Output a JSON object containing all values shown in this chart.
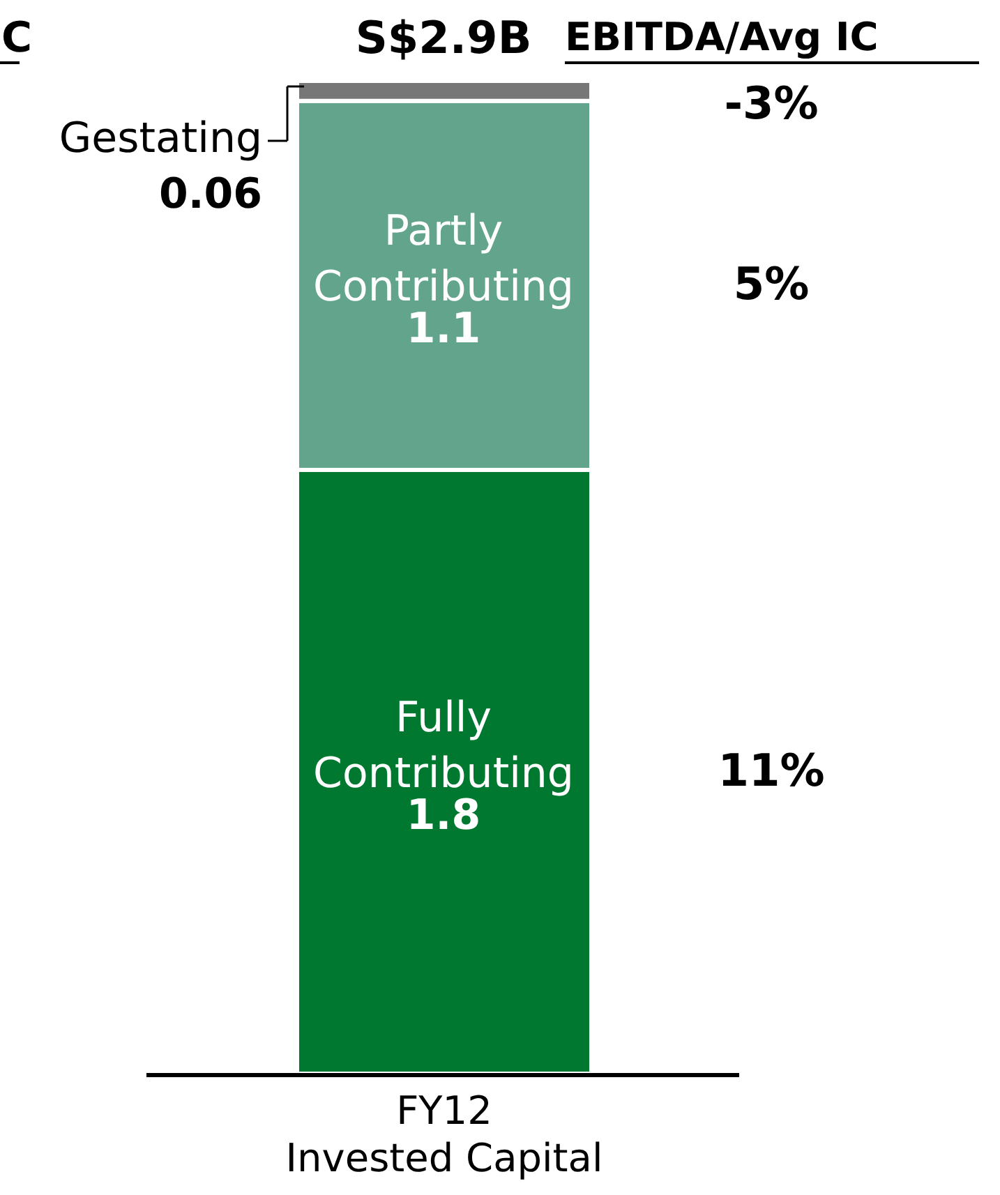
{
  "chart_data": {
    "type": "bar",
    "stacked": true,
    "categories": [
      "FY12\nInvested Capital"
    ],
    "series": [
      {
        "name": "Fully Contributing",
        "color": "#00782f",
        "values": [
          1.8
        ]
      },
      {
        "name": "Partly Contributing",
        "color": "#62a48c",
        "values": [
          1.1
        ]
      },
      {
        "name": "Gestating",
        "color": "#777777",
        "values": [
          0.06
        ]
      }
    ],
    "data_labels": true,
    "totals": [
      "S$2.9B"
    ],
    "tick_labels": "x",
    "annotations": [
      "C",
      "EBITDA/Avg IC",
      "11%",
      "5%",
      "-3%"
    ]
  }
}
